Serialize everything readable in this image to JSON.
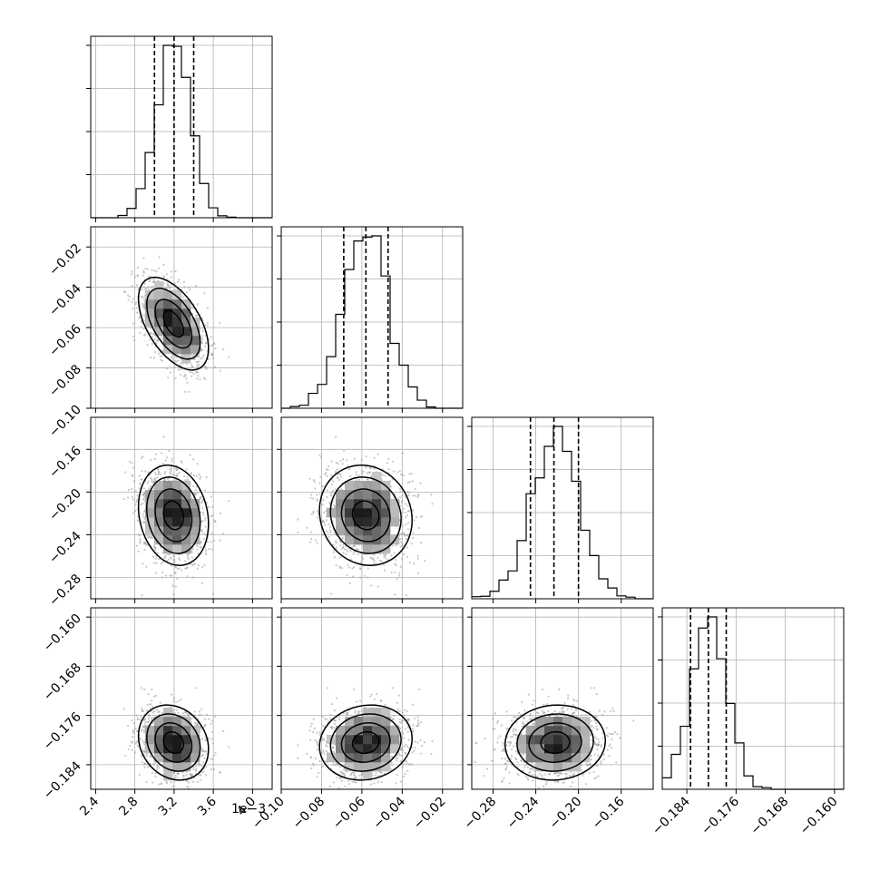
{
  "chart_data": {
    "type": "corner",
    "grid": true,
    "parameters": [
      {
        "range": [
          2.35,
          4.2
        ],
        "ticks": [
          2.4,
          2.8,
          3.2,
          3.6,
          4.0
        ],
        "tick_labels": [
          "2.4",
          "2.8",
          "3.2",
          "3.6",
          "4.0"
        ],
        "axis_offset_label": "1e−3",
        "scale_note": "values in units of 1e-3",
        "quantiles": [
          3.0,
          3.2,
          3.4
        ],
        "mean": 3.2,
        "sd": 0.17
      },
      {
        "range": [
          -0.1,
          -0.01
        ],
        "ticks": [
          -0.1,
          -0.08,
          -0.06,
          -0.04,
          -0.02
        ],
        "tick_labels": [
          "−0.10",
          "−0.08",
          "−0.06",
          "−0.04",
          "−0.02"
        ],
        "quantiles": [
          -0.069,
          -0.058,
          -0.047
        ],
        "mean": -0.058,
        "sd": 0.011
      },
      {
        "range": [
          -0.3,
          -0.13
        ],
        "ticks": [
          -0.28,
          -0.24,
          -0.2,
          -0.16
        ],
        "tick_labels": [
          "−0.28",
          "−0.24",
          "−0.20",
          "−0.16"
        ],
        "quantiles": [
          -0.245,
          -0.223,
          -0.2
        ],
        "mean": -0.222,
        "sd": 0.022
      },
      {
        "range": [
          -0.188,
          -0.1585
        ],
        "ticks": [
          -0.184,
          -0.176,
          -0.168,
          -0.16
        ],
        "tick_labels": [
          "−0.184",
          "−0.176",
          "−0.168",
          "−0.160"
        ],
        "quantiles": [
          -0.1834,
          -0.1805,
          -0.1776
        ],
        "mean": -0.1805,
        "sd": 0.0029
      }
    ],
    "pair_correlations": {
      "1-0": -0.55,
      "2-0": -0.15,
      "2-1": -0.25,
      "3-0": -0.2,
      "3-1": -0.15,
      "3-2": 0.05
    }
  }
}
